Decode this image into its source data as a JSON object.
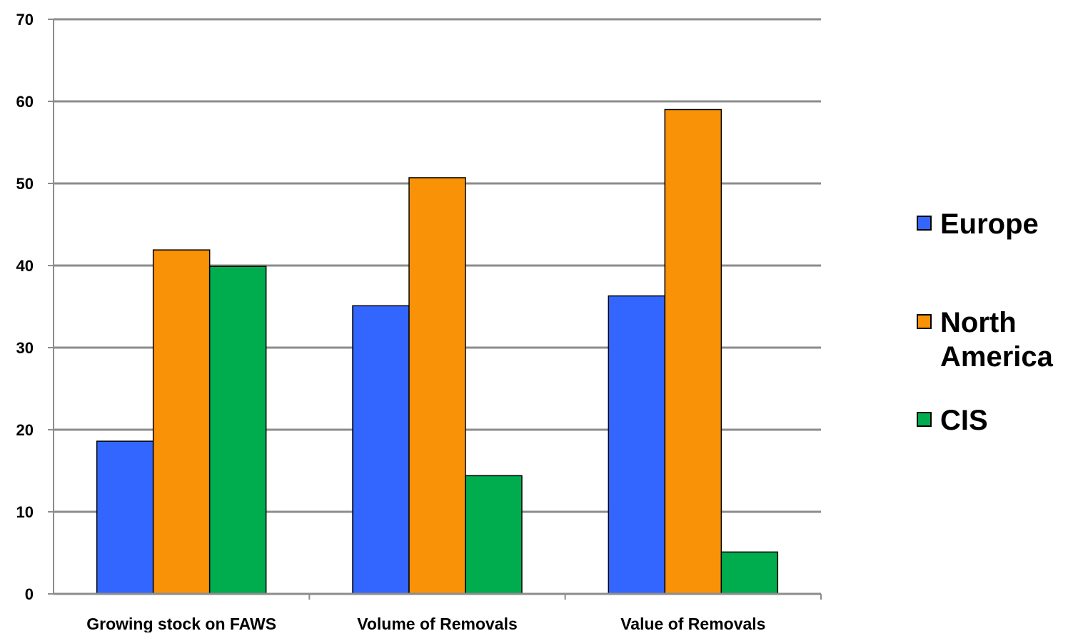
{
  "chart_data": {
    "type": "bar",
    "title": "",
    "xlabel": "",
    "ylabel": "",
    "categories": [
      "Growing stock on FAWS",
      "Volume of Removals",
      "Value of Removals"
    ],
    "series": [
      {
        "name": "Europe",
        "color": "#3366ff",
        "values": [
          18.6,
          35.1,
          36.3
        ]
      },
      {
        "name": "North America",
        "color": "#f99207",
        "values": [
          41.9,
          50.7,
          59.0
        ]
      },
      {
        "name": "CIS",
        "color": "#00ad4e",
        "values": [
          39.9,
          14.4,
          5.1
        ]
      }
    ],
    "ylim": [
      0,
      70
    ],
    "yticks": [
      0,
      10,
      20,
      30,
      40,
      50,
      60,
      70
    ],
    "grid": true,
    "legend_position": "right"
  },
  "legend": {
    "items": [
      {
        "label": "Europe",
        "color": "#3366ff"
      },
      {
        "label": "North America",
        "color": "#f99207"
      },
      {
        "label": "CIS",
        "color": "#00ad4e"
      }
    ]
  }
}
